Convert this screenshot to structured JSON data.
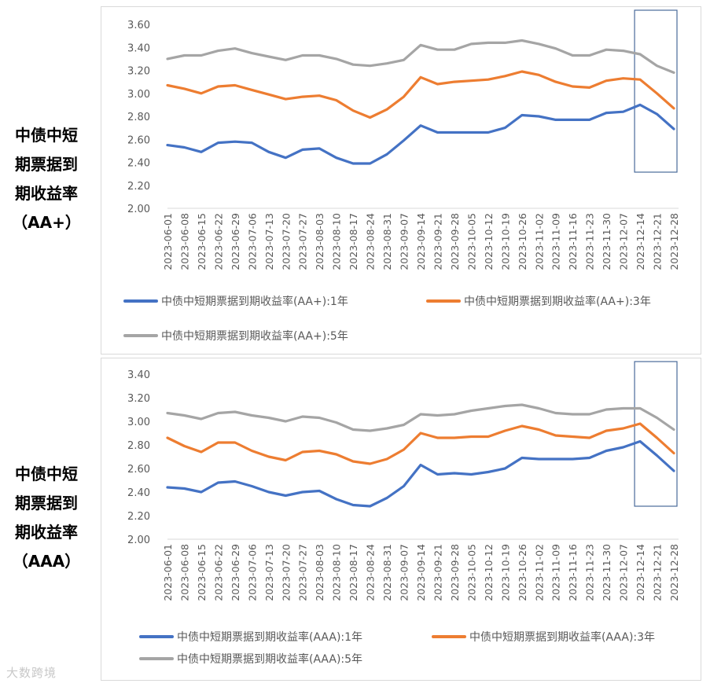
{
  "panels": [
    {
      "label_lines": [
        "中债中短",
        "期票据到",
        "期收益率",
        "（AA+）"
      ]
    },
    {
      "label_lines": [
        "中债中短",
        "期票据到",
        "期收益率",
        "（AAA）"
      ]
    }
  ],
  "watermark": "大数跨境",
  "colors": {
    "y1": "#4472c4",
    "y3": "#ed7d31",
    "y5": "#a5a5a5",
    "box": "#4a6a9a"
  },
  "chart_data": [
    {
      "type": "line",
      "title": "",
      "xlabel": "",
      "ylabel": "",
      "ylim": [
        2.0,
        3.6
      ],
      "y_ticks": [
        "2.00",
        "2.20",
        "2.40",
        "2.60",
        "2.80",
        "3.00",
        "3.20",
        "3.40",
        "3.60"
      ],
      "x_ticks": [
        "2023-06-01",
        "2023-06-08",
        "2023-06-15",
        "2023-06-22",
        "2023-06-29",
        "2023-07-06",
        "2023-07-13",
        "2023-07-20",
        "2023-07-27",
        "2023-08-03",
        "2023-08-10",
        "2023-08-17",
        "2023-08-24",
        "2023-08-31",
        "2023-09-07",
        "2023-09-14",
        "2023-09-21",
        "2023-09-28",
        "2023-10-05",
        "2023-10-12",
        "2023-10-19",
        "2023-10-26",
        "2023-11-02",
        "2023-11-09",
        "2023-11-16",
        "2023-11-23",
        "2023-11-30",
        "2023-12-07",
        "2023-12-14",
        "2023-12-21",
        "2023-12-28"
      ],
      "highlight_range": [
        "2023-12-14",
        "2023-12-28"
      ],
      "legend_position": "bottom",
      "grid": false,
      "series": [
        {
          "name": "中债中短期票据到期收益率(AA+):1年",
          "values": [
            2.55,
            2.53,
            2.49,
            2.57,
            2.58,
            2.57,
            2.49,
            2.44,
            2.51,
            2.52,
            2.44,
            2.39,
            2.39,
            2.47,
            2.59,
            2.72,
            2.66,
            2.66,
            2.66,
            2.66,
            2.7,
            2.81,
            2.8,
            2.77,
            2.77,
            2.77,
            2.83,
            2.84,
            2.9,
            2.82,
            2.69
          ]
        },
        {
          "name": "中债中短期票据到期收益率(AA+):3年",
          "values": [
            3.07,
            3.04,
            3.0,
            3.06,
            3.07,
            3.03,
            2.99,
            2.95,
            2.97,
            2.98,
            2.94,
            2.85,
            2.79,
            2.86,
            2.97,
            3.14,
            3.08,
            3.1,
            3.11,
            3.12,
            3.15,
            3.19,
            3.16,
            3.1,
            3.06,
            3.05,
            3.11,
            3.13,
            3.12,
            3.0,
            2.87
          ]
        },
        {
          "name": "中债中短期票据到期收益率(AA+):5年",
          "values": [
            3.3,
            3.33,
            3.33,
            3.37,
            3.39,
            3.35,
            3.32,
            3.29,
            3.33,
            3.33,
            3.3,
            3.25,
            3.24,
            3.26,
            3.29,
            3.42,
            3.38,
            3.38,
            3.43,
            3.44,
            3.44,
            3.46,
            3.43,
            3.39,
            3.33,
            3.33,
            3.38,
            3.37,
            3.34,
            3.24,
            3.18
          ]
        }
      ]
    },
    {
      "type": "line",
      "title": "",
      "xlabel": "",
      "ylabel": "",
      "ylim": [
        2.0,
        3.4
      ],
      "y_ticks": [
        "2.00",
        "2.20",
        "2.40",
        "2.60",
        "2.80",
        "3.00",
        "3.20",
        "3.40"
      ],
      "x_ticks": [
        "2023-06-01",
        "2023-06-08",
        "2023-06-15",
        "2023-06-22",
        "2023-06-29",
        "2023-07-06",
        "2023-07-13",
        "2023-07-20",
        "2023-07-27",
        "2023-08-03",
        "2023-08-10",
        "2023-08-17",
        "2023-08-24",
        "2023-08-31",
        "2023-09-07",
        "2023-09-14",
        "2023-09-21",
        "2023-09-28",
        "2023-10-05",
        "2023-10-12",
        "2023-10-19",
        "2023-10-26",
        "2023-11-02",
        "2023-11-09",
        "2023-11-16",
        "2023-11-23",
        "2023-11-30",
        "2023-12-07",
        "2023-12-14",
        "2023-12-21",
        "2023-12-28"
      ],
      "highlight_range": [
        "2023-12-14",
        "2023-12-28"
      ],
      "legend_position": "bottom",
      "grid": false,
      "series": [
        {
          "name": "中债中短期票据到期收益率(AAA):1年",
          "values": [
            2.44,
            2.43,
            2.4,
            2.48,
            2.49,
            2.45,
            2.4,
            2.37,
            2.4,
            2.41,
            2.34,
            2.29,
            2.28,
            2.35,
            2.45,
            2.63,
            2.55,
            2.56,
            2.55,
            2.57,
            2.6,
            2.69,
            2.68,
            2.68,
            2.68,
            2.69,
            2.75,
            2.78,
            2.83,
            2.71,
            2.58
          ]
        },
        {
          "name": "中债中短期票据到期收益率(AAA):3年",
          "values": [
            2.86,
            2.79,
            2.74,
            2.82,
            2.82,
            2.75,
            2.7,
            2.67,
            2.74,
            2.75,
            2.72,
            2.66,
            2.64,
            2.68,
            2.76,
            2.9,
            2.86,
            2.86,
            2.87,
            2.87,
            2.92,
            2.96,
            2.93,
            2.88,
            2.87,
            2.86,
            2.92,
            2.94,
            2.98,
            2.86,
            2.73
          ]
        },
        {
          "name": "中债中短期票据到期收益率(AAA):5年",
          "values": [
            3.07,
            3.05,
            3.02,
            3.07,
            3.08,
            3.05,
            3.03,
            3.0,
            3.04,
            3.03,
            2.99,
            2.93,
            2.92,
            2.94,
            2.97,
            3.06,
            3.05,
            3.06,
            3.09,
            3.11,
            3.13,
            3.14,
            3.11,
            3.07,
            3.06,
            3.06,
            3.1,
            3.11,
            3.11,
            3.03,
            2.93
          ]
        }
      ]
    }
  ]
}
